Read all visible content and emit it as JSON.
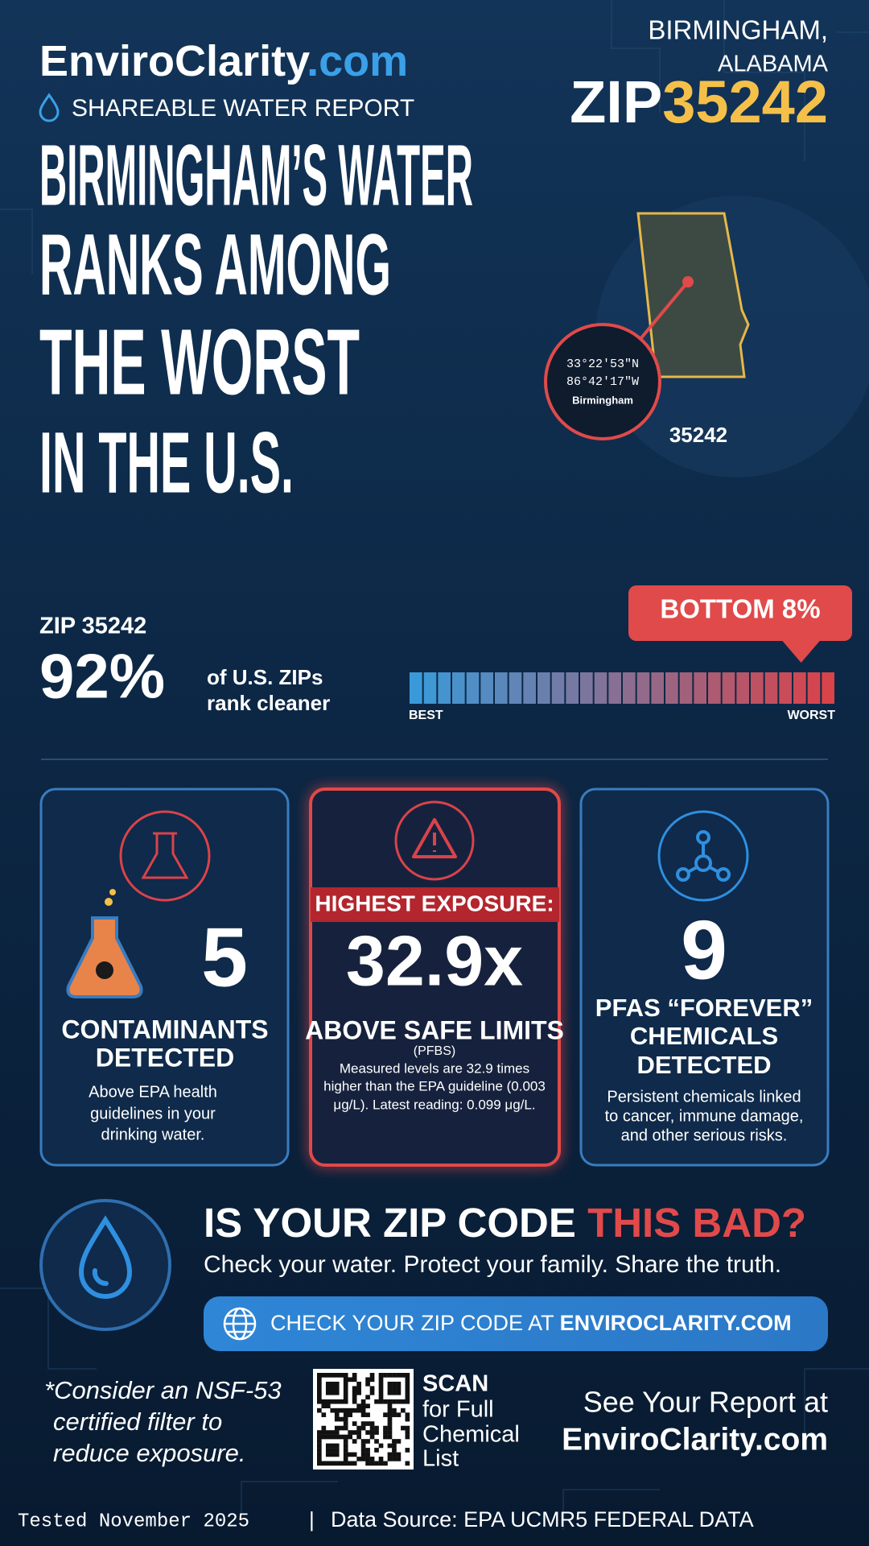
{
  "brand": {
    "name_main": "EnviroClarity",
    "name_tld": ".com",
    "subtitle": "SHAREABLE WATER REPORT"
  },
  "location": {
    "city": "BIRMINGHAM,",
    "state": "ALABAMA",
    "zip_prefix": "ZIP",
    "zip": "35242"
  },
  "headline": [
    "BIRMINGHAM’S WATER",
    "RANKS AMONG",
    "THE WORST",
    "IN THE U.S."
  ],
  "map": {
    "lat": "33°22′53″N",
    "lon": "86°42′17″W",
    "city": "Birmingham",
    "zip": "35242"
  },
  "ranking": {
    "zip_label": "ZIP 35242",
    "percent": {
      "value": 92,
      "label": "92%"
    },
    "description": [
      "of U.S. ZIPs",
      "rank cleaner"
    ],
    "badge": "BOTTOM 8%",
    "scale_best": "BEST",
    "scale_worst": "WORST"
  },
  "cards": [
    {
      "value": "5",
      "title": [
        "CONTAMINANTS",
        "DETECTED"
      ],
      "description": [
        "Above EPA health",
        "guidelines in your",
        "drinking water."
      ]
    },
    {
      "banner": "HIGHEST EXPOSURE:",
      "value": "32.9x",
      "title": [
        "ABOVE SAFE LIMITS"
      ],
      "subtitle": "(PFBS)",
      "description": [
        "Measured levels are 32.9 times",
        "higher than the EPA guideline (0.003",
        "μg/L). Latest reading: 0.099 μg/L."
      ]
    },
    {
      "value": "9",
      "title": [
        "PFAS “FOREVER”",
        "CHEMICALS",
        "DETECTED"
      ],
      "description": [
        "Persistent chemicals linked",
        "to cancer, immune damage,",
        "and other serious risks."
      ]
    }
  ],
  "cta": {
    "heading_main": "IS YOUR ZIP CODE ",
    "heading_accent": "THIS BAD?",
    "tagline": "Check your water. Protect your family. Share the truth.",
    "button_main": "CHECK YOUR ZIP CODE AT ",
    "button_site": "ENVIROCLARITY.COM"
  },
  "footer": {
    "note": [
      "*Consider an NSF-53",
      "certified filter to",
      "reduce exposure."
    ],
    "scan": [
      "SCAN",
      "for Full",
      "Chemical",
      "List"
    ],
    "report": [
      "See Your Report at",
      "EnviroClarity.com"
    ],
    "tested": "Tested November 2025",
    "separator": "|",
    "source": "Data Source: EPA UCMR5 FEDERAL DATA"
  }
}
